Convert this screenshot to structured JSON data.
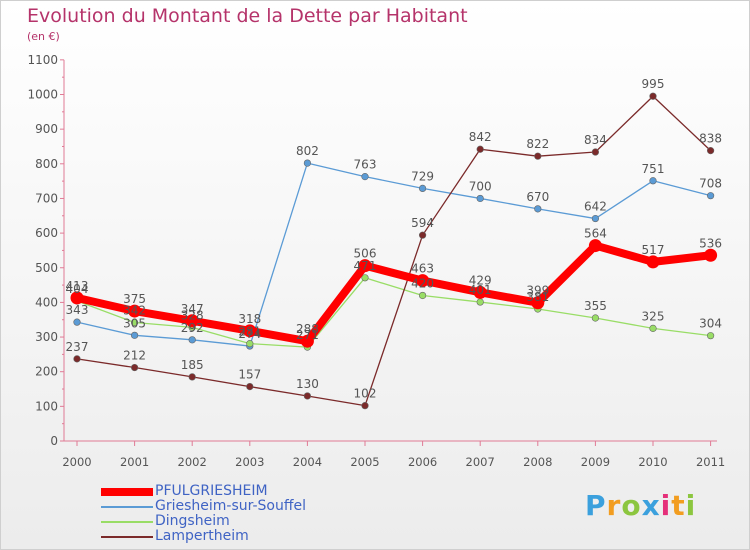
{
  "header": {
    "title": "Evolution du Montant de la Dette par Habitant",
    "subtitle": "(en €)"
  },
  "logo": {
    "text": "Proxiti",
    "colors": [
      "#3ba0dd",
      "#f29d20",
      "#8cc63f",
      "#3ba0dd",
      "#e5307a",
      "#f29d20",
      "#8cc63f"
    ]
  },
  "chart_data": {
    "type": "line",
    "x": [
      "2000",
      "2001",
      "2002",
      "2003",
      "2004",
      "2005",
      "2006",
      "2007",
      "2008",
      "2009",
      "2010",
      "2011"
    ],
    "ylim": [
      0,
      1100
    ],
    "yticks": [
      0,
      100,
      200,
      300,
      400,
      500,
      600,
      700,
      800,
      900,
      1000,
      1100
    ],
    "grid": false,
    "legend": "bottom-left",
    "series": [
      {
        "name": "PFULGRIESHEIM",
        "color": "#ff0000",
        "values": [
          413,
          375,
          347,
          318,
          288,
          506,
          463,
          429,
          399,
          564,
          517,
          536
        ]
      },
      {
        "name": "Griesheim-sur-Souffel",
        "color": "#5b9bd5",
        "values": [
          343,
          305,
          292,
          274,
          802,
          763,
          729,
          700,
          670,
          642,
          751,
          708
        ]
      },
      {
        "name": "Dingsheim",
        "color": "#99dd66",
        "values": [
          404,
          342,
          328,
          281,
          271,
          471,
          420,
          401,
          381,
          355,
          325,
          304
        ]
      },
      {
        "name": "Lampertheim",
        "color": "#7b2a2a",
        "values": [
          237,
          212,
          185,
          157,
          130,
          102,
          594,
          842,
          822,
          834,
          995,
          838
        ]
      }
    ]
  }
}
